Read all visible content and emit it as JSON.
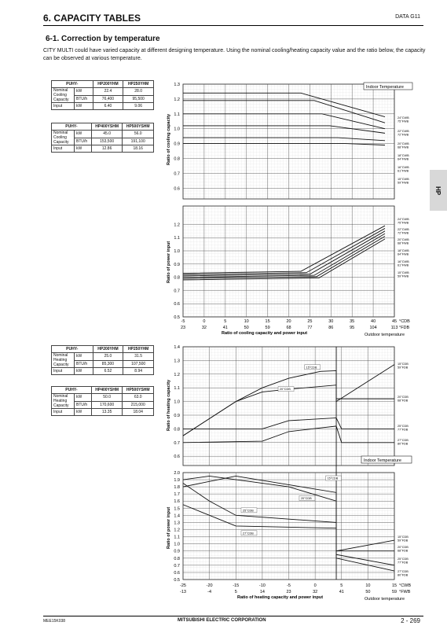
{
  "header": {
    "title": "6. CAPACITY TABLES",
    "data_ref": "DATA G11"
  },
  "section": {
    "title": "6-1. Correction by temperature",
    "intro": "CITY MULTI could have varied capacity at different designing temperature. Using the nominal cooling/heating capacity value and the ratio below, the capacity can be observed at various temperature."
  },
  "side_tab": "HP",
  "tables": {
    "cool1": {
      "model": "PUHY-",
      "col1": "HP200YHM",
      "col2": "HP250YHM",
      "rows": [
        {
          "label": "Nominal Cooling Capacity",
          "unit": "kW",
          "a": "22.4",
          "b": "28.0"
        },
        {
          "label": "",
          "unit": "BTU/h",
          "a": "76,400",
          "b": "95,500"
        },
        {
          "label": "Input",
          "unit": "kW",
          "a": "6.40",
          "b": "9.06"
        }
      ]
    },
    "cool2": {
      "model": "PUHY-",
      "col1": "HP400YSHM",
      "col2": "HP500YSHM",
      "rows": [
        {
          "label": "Nominal Cooling Capacity",
          "unit": "kW",
          "a": "45.0",
          "b": "56.0"
        },
        {
          "label": "",
          "unit": "BTU/h",
          "a": "153,500",
          "b": "191,100"
        },
        {
          "label": "Input",
          "unit": "kW",
          "a": "12.86",
          "b": "18.16"
        }
      ]
    },
    "heat1": {
      "model": "PUHY-",
      "col1": "HP200YHM",
      "col2": "HP250YHM",
      "rows": [
        {
          "label": "Nominal Heating Capacity",
          "unit": "kW",
          "a": "25.0",
          "b": "31.5"
        },
        {
          "label": "",
          "unit": "BTU/h",
          "a": "85,300",
          "b": "107,500"
        },
        {
          "label": "Input",
          "unit": "kW",
          "a": "6.52",
          "b": "8.94"
        }
      ]
    },
    "heat2": {
      "model": "PUHY-",
      "col1": "HP400YSHM",
      "col2": "HP500YSHM",
      "rows": [
        {
          "label": "Nominal Heating Capacity",
          "unit": "kW",
          "a": "50.0",
          "b": "63.0"
        },
        {
          "label": "",
          "unit": "BTU/h",
          "a": "170,600",
          "b": "215,000"
        },
        {
          "label": "Input",
          "unit": "kW",
          "a": "13.35",
          "b": "18.04"
        }
      ]
    }
  },
  "cooling_chart": {
    "legend_box": "Indoor Temperature",
    "cap_ylabel": "Ratio of cooling capacity",
    "pow_ylabel": "Ratio of power input",
    "cap_yticks": [
      "1.3",
      "1.2",
      "1.1",
      "1.0",
      "0.9",
      "0.8",
      "0.7",
      "0.6"
    ],
    "pow_yticks": [
      "1.2",
      "1.1",
      "1.0",
      "0.9",
      "0.8",
      "0.7",
      "0.6",
      "0.5"
    ],
    "xticks_c": [
      "-5",
      "0",
      "5",
      "10",
      "15",
      "20",
      "25",
      "30",
      "35",
      "40",
      "45"
    ],
    "xticks_f": [
      "23",
      "32",
      "41",
      "50",
      "59",
      "68",
      "77",
      "86",
      "95",
      "104",
      "113"
    ],
    "x_unit_c": "°CDB",
    "x_unit_f": "°FDB",
    "xlabel": "Ratio of cooling capacity and power input",
    "outdoor_label": "Outdoor temperature",
    "curve_labels": [
      "24°CWB 75°FWB",
      "22°CWB 72°FWB",
      "20°CWB 68°FWB",
      "18°CWB 64°FWB",
      "16°CWB 61°FWB",
      "15°CWB 59°FWB"
    ]
  },
  "heating_chart": {
    "legend_box": "Indoor Temperature",
    "cap_ylabel": "Ratio of heating capacity",
    "pow_ylabel": "Ratio of power input",
    "cap_yticks": [
      "1.4",
      "1.3",
      "1.2",
      "1.1",
      "1.0",
      "0.9",
      "0.8",
      "0.7",
      "0.6"
    ],
    "pow_yticks": [
      "2.0",
      "1.9",
      "1.8",
      "1.7",
      "1.6",
      "1.5",
      "1.4",
      "1.3",
      "1.2",
      "1.1",
      "1.0",
      "0.9",
      "0.8",
      "0.7",
      "0.6",
      "0.5"
    ],
    "xticks_c": [
      "-25",
      "-20",
      "-15",
      "-10",
      "-5",
      "0",
      "5",
      "10",
      "15"
    ],
    "xticks_f": [
      "-13",
      "-4",
      "5",
      "14",
      "23",
      "32",
      "41",
      "50",
      "59"
    ],
    "x_unit_c": "°CWB",
    "x_unit_f": "°FWB",
    "xlabel": "Ratio of heating capacity and power input",
    "outdoor_label": "Outdoor temperature",
    "cap_curve_labels": [
      "15°CDB",
      "20°CDB"
    ],
    "cap_right_labels": [
      "15°CDB 59°FDB",
      "20°CDB 68°FDB",
      "25°CDB 77°FDB",
      "27°CDB 80°FDB"
    ],
    "pow_curve_labels": [
      "15°CDB",
      "20°CDB",
      "25°CDB",
      "27°CDB"
    ],
    "pow_right_labels": [
      "15°CDB 59°FDB",
      "20°CDB 68°FDB",
      "25°CDB 77°FDB",
      "27°CDB 80°FDB"
    ]
  },
  "footer": {
    "doc_code": "MEE15K038",
    "company": "MITSUBISHI ELECTRIC CORPORATION",
    "page": "2 - 269"
  }
}
